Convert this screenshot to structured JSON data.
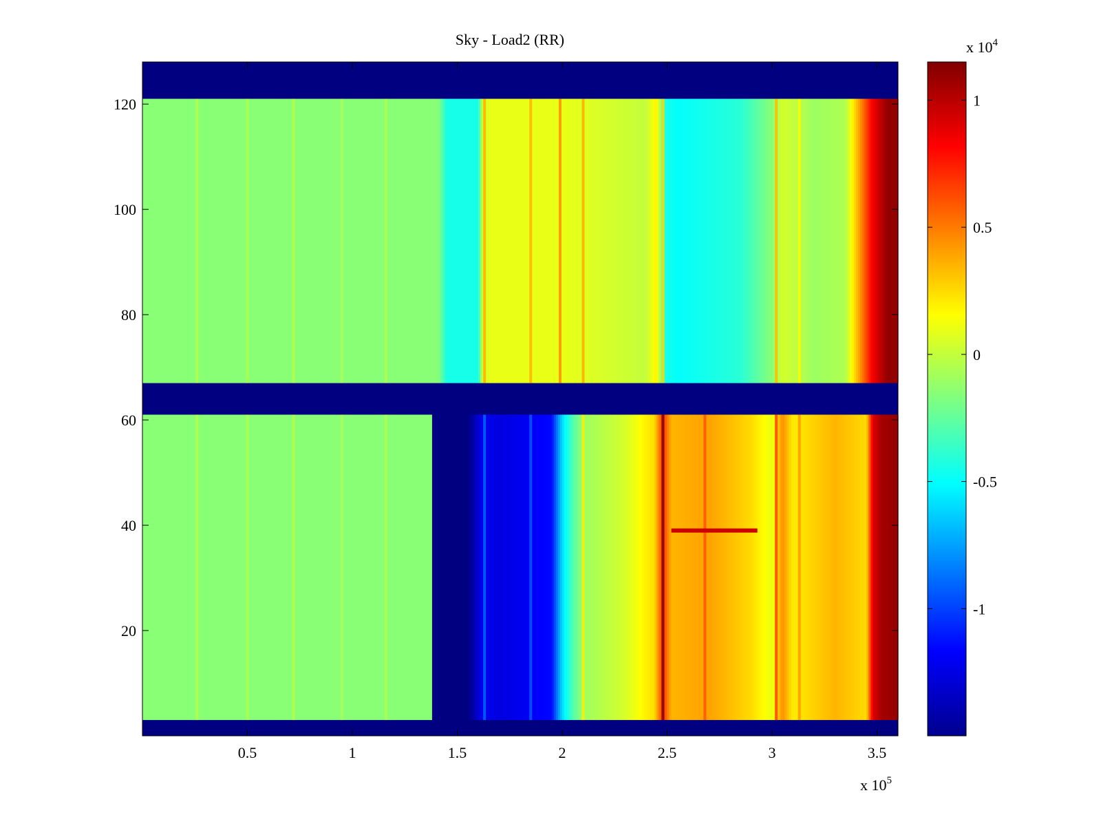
{
  "chart_data": {
    "type": "heatmap",
    "title": "Sky - Load2 (RR)",
    "xlabel": "",
    "ylabel": "",
    "x_exponent_label": "x 10",
    "x_exponent_power": "5",
    "xlim": [
      0,
      3.6
    ],
    "ylim": [
      0,
      128
    ],
    "x_ticks": [
      0.5,
      1,
      1.5,
      2,
      2.5,
      3,
      3.5
    ],
    "x_tick_labels": [
      "0.5",
      "1",
      "1.5",
      "2",
      "2.5",
      "3",
      "3.5"
    ],
    "y_ticks": [
      20,
      40,
      60,
      80,
      100,
      120
    ],
    "y_tick_labels": [
      "20",
      "40",
      "60",
      "80",
      "100",
      "120"
    ],
    "colorbar": {
      "colormap": "jet",
      "range": [
        -1.5,
        1.15
      ],
      "ticks": [
        -1,
        -0.5,
        0,
        0.5,
        1
      ],
      "tick_labels": [
        "-1",
        "-0.5",
        "0",
        "0.5",
        "1"
      ],
      "exponent_label": "x 10",
      "exponent_power": "4"
    },
    "masked_rows": [
      [
        0,
        3
      ],
      [
        61,
        67
      ],
      [
        121,
        128
      ]
    ],
    "masked_value": -1.5,
    "upper_panel": {
      "y_range": [
        67,
        121
      ],
      "x_columns": [
        0.0,
        1.41,
        1.45,
        1.6,
        1.62,
        1.66,
        2.0,
        2.4,
        2.45,
        2.49,
        2.55,
        2.7,
        2.85,
        3.0,
        3.05,
        3.1,
        3.2,
        3.35,
        3.48,
        3.52,
        3.55,
        3.6
      ],
      "values": [
        -0.15,
        -0.15,
        -0.45,
        -0.45,
        0.05,
        0.1,
        0.1,
        0.0,
        0.2,
        -0.45,
        -0.5,
        -0.45,
        -0.4,
        -0.15,
        0.05,
        0.0,
        -0.1,
        -0.05,
        0.85,
        1.0,
        1.1,
        1.1
      ]
    },
    "lower_panel": {
      "y_range": [
        3,
        61
      ],
      "x_columns": [
        0.0,
        1.38,
        1.38,
        1.55,
        1.62,
        1.7,
        1.95,
        1.98,
        2.0,
        2.05,
        2.1,
        2.3,
        2.44,
        2.48,
        2.52,
        2.7,
        2.9,
        3.0,
        3.05,
        3.1,
        3.3,
        3.45,
        3.48,
        3.52,
        3.6
      ],
      "values": [
        -0.15,
        -0.15,
        -1.5,
        -1.5,
        -1.2,
        -1.25,
        -1.15,
        -0.8,
        -0.6,
        -0.3,
        -0.1,
        0.05,
        0.25,
        0.7,
        0.35,
        0.4,
        0.25,
        0.1,
        0.45,
        0.2,
        0.35,
        0.25,
        0.9,
        1.05,
        1.1
      ]
    },
    "vertical_lines": [
      {
        "x": 0.26,
        "dv": 0.12,
        "panels": "both"
      },
      {
        "x": 0.5,
        "dv": 0.1,
        "panels": "both"
      },
      {
        "x": 0.72,
        "dv": 0.12,
        "panels": "both"
      },
      {
        "x": 0.95,
        "dv": 0.08,
        "panels": "both"
      },
      {
        "x": 1.16,
        "dv": 0.1,
        "panels": "both"
      },
      {
        "x": 1.63,
        "dv": 0.3,
        "panels": "both"
      },
      {
        "x": 1.85,
        "dv": 0.25,
        "panels": "both"
      },
      {
        "x": 1.99,
        "dv": 0.35,
        "panels": "upper"
      },
      {
        "x": 2.1,
        "dv": 0.3,
        "panels": "both"
      },
      {
        "x": 2.48,
        "dv": 0.55,
        "panels": "both"
      },
      {
        "x": 2.68,
        "dv": 0.2,
        "panels": "lower"
      },
      {
        "x": 3.02,
        "dv": 0.4,
        "panels": "both"
      },
      {
        "x": 3.13,
        "dv": 0.2,
        "panels": "both"
      }
    ],
    "horizontal_streaks": [
      {
        "y": 39,
        "x_range": [
          2.52,
          2.93
        ],
        "value": 0.95
      }
    ]
  }
}
